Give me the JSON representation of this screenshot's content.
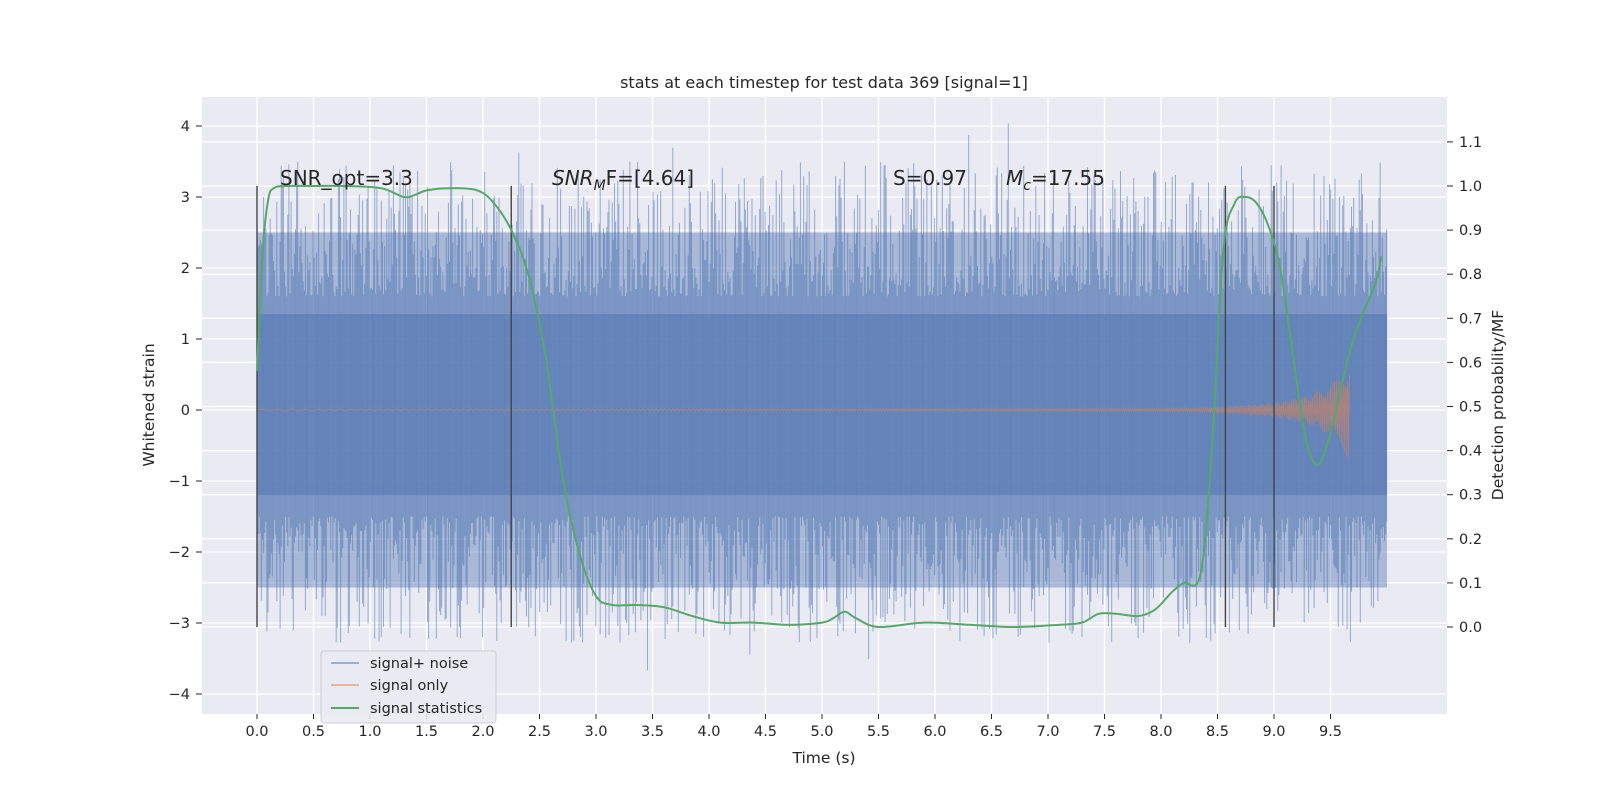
{
  "chart_data": {
    "type": "line",
    "title": "stats at each timestep for test data 369 [signal=1]",
    "xlabel": "Time (s)",
    "ylabel": "Whitened strain",
    "ylabel_right": "Detection probability/MF",
    "xlim": [
      -0.5,
      10.5
    ],
    "ylim": [
      -4.4,
      4.4
    ],
    "ylim_right": [
      -0.2,
      1.2
    ],
    "x_ticks": [
      0.0,
      0.5,
      1.0,
      1.5,
      2.0,
      2.5,
      3.0,
      3.5,
      4.0,
      4.5,
      5.0,
      5.5,
      6.0,
      6.5,
      7.0,
      7.5,
      8.0,
      8.5,
      9.0,
      9.5
    ],
    "x_tick_labels": [
      "0.0",
      "0.5",
      "1.0",
      "1.5",
      "2.0",
      "2.5",
      "3.0",
      "3.5",
      "4.0",
      "4.5",
      "5.0",
      "5.5",
      "6.0",
      "6.5",
      "7.0",
      "7.5",
      "8.0",
      "8.5",
      "9.0",
      "9.5"
    ],
    "y_ticks": [
      4,
      3,
      2,
      1,
      0,
      -1,
      -2,
      -3,
      -4
    ],
    "y_tick_labels": [
      "4",
      "3",
      "2",
      "1",
      "0",
      "−1",
      "−2",
      "−3",
      "−4"
    ],
    "y_ticks_right": [
      1.1,
      1.0,
      0.9,
      0.8,
      0.7,
      0.6,
      0.5,
      0.4,
      0.3,
      0.2,
      0.1,
      0.0
    ],
    "y_tick_labels_right": [
      "1.1",
      "1.0",
      "0.9",
      "0.8",
      "0.7",
      "0.6",
      "0.5",
      "0.4",
      "0.3",
      "0.2",
      "0.1",
      "0.0"
    ],
    "grid": true,
    "legend_position": "lower-left",
    "series": [
      {
        "name": "signal+ noise",
        "color": "#4c72b0",
        "axis": "left",
        "x_range": [
          0.0,
          10.0
        ],
        "band_inner": [
          -1.2,
          1.35
        ],
        "band_outer": [
          -2.5,
          2.5
        ],
        "y_min": -3.7,
        "y_max": 4.05
      },
      {
        "name": "signal only",
        "color": "#dd8452",
        "axis": "left",
        "x_range": [
          0.0,
          9.67
        ],
        "envelope": [
          [
            0.0,
            0.01
          ],
          [
            8.0,
            0.02
          ],
          [
            8.5,
            0.04
          ],
          [
            9.0,
            0.1
          ],
          [
            9.3,
            0.2
          ],
          [
            9.5,
            0.35
          ],
          [
            9.6,
            0.5
          ],
          [
            9.67,
            0.75
          ]
        ]
      },
      {
        "name": "signal statistics",
        "color": "#55a868",
        "axis": "right",
        "x": [
          0.0,
          0.05,
          0.1,
          0.15,
          0.25,
          0.5,
          0.8,
          1.1,
          1.3,
          1.4,
          1.5,
          1.7,
          1.95,
          2.1,
          2.25,
          2.4,
          2.55,
          2.7,
          2.85,
          3.0,
          3.15,
          3.35,
          3.6,
          3.85,
          4.1,
          4.4,
          4.7,
          5.0,
          5.1,
          5.2,
          5.3,
          5.5,
          5.9,
          6.3,
          6.7,
          7.1,
          7.3,
          7.45,
          7.6,
          7.8,
          7.95,
          8.1,
          8.2,
          8.35,
          8.45,
          8.55,
          8.65,
          8.75,
          8.85,
          8.95,
          9.05,
          9.15,
          9.25,
          9.32,
          9.4,
          9.5,
          9.6,
          9.7,
          9.8,
          9.9,
          9.95
        ],
        "y": [
          0.58,
          0.85,
          0.97,
          0.995,
          1.0,
          1.0,
          1.0,
          0.995,
          0.975,
          0.98,
          0.99,
          0.995,
          0.99,
          0.96,
          0.9,
          0.8,
          0.62,
          0.35,
          0.17,
          0.07,
          0.05,
          0.05,
          0.045,
          0.025,
          0.01,
          0.01,
          0.005,
          0.01,
          0.02,
          0.035,
          0.02,
          0.0,
          0.01,
          0.005,
          0.0,
          0.005,
          0.01,
          0.03,
          0.03,
          0.025,
          0.04,
          0.08,
          0.1,
          0.12,
          0.4,
          0.85,
          0.96,
          0.975,
          0.96,
          0.91,
          0.82,
          0.65,
          0.47,
          0.39,
          0.37,
          0.44,
          0.55,
          0.65,
          0.72,
          0.78,
          0.84
        ]
      }
    ],
    "vertical_markers": [
      0.0,
      2.25,
      8.57,
      9.0
    ],
    "annotations": [
      {
        "text": "SNR_opt=3.3",
        "x": 0.2,
        "y": 3.15
      },
      {
        "text_parts": [
          "SNR",
          "M",
          "F=[4.64]"
        ],
        "x": 2.6,
        "y": 3.15
      },
      {
        "text": "S=0.97",
        "x": 5.6,
        "y": 3.15
      },
      {
        "text_parts": [
          "M",
          "c",
          "=17.55"
        ],
        "x": 6.6,
        "y": 3.15
      }
    ]
  }
}
